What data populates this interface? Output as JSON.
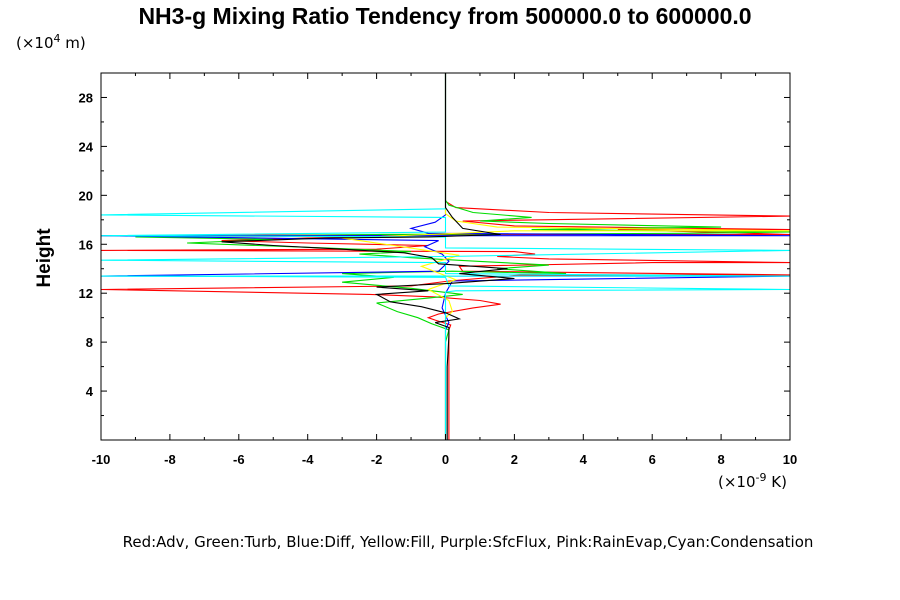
{
  "chart_data": {
    "type": "line",
    "title": "NH3-g Mixing Ratio Tendency from 500000.0 to 600000.0",
    "ylabel": "Height",
    "y_multiplier": {
      "prefix": "(×10",
      "exp": "4",
      "suffix": " m)"
    },
    "x_multiplier": {
      "prefix": "(×10",
      "exp": "-9",
      "suffix": " K)"
    },
    "xlim": [
      -10,
      10
    ],
    "ylim": [
      0,
      30
    ],
    "x_ticks": [
      -10,
      -8,
      -6,
      -4,
      -2,
      0,
      2,
      4,
      6,
      8,
      10
    ],
    "y_ticks": [
      4,
      8,
      12,
      16,
      20,
      24,
      28
    ],
    "grid": false,
    "caption": "Red:Adv, Green:Turb, Blue:Diff, Yellow:Fill, Purple:SfcFlux, Pink:RainEvap,Cyan:Condensation",
    "series": [
      {
        "name": "Adv",
        "color": "#ff0000",
        "points": [
          [
            0.1,
            0
          ],
          [
            0.1,
            2
          ],
          [
            0.1,
            4
          ],
          [
            0.1,
            6
          ],
          [
            0.1,
            8
          ],
          [
            0.1,
            9
          ],
          [
            0.15,
            9.4
          ],
          [
            -0.3,
            9.8
          ],
          [
            -0.5,
            10
          ],
          [
            -0.2,
            10.3
          ],
          [
            0.8,
            10.8
          ],
          [
            1.6,
            11.1
          ],
          [
            1.0,
            11.4
          ],
          [
            -0.3,
            11.7
          ],
          [
            -2.2,
            11.9
          ],
          [
            -10,
            12.3
          ],
          [
            -1.0,
            12.6
          ],
          [
            0.1,
            13
          ],
          [
            2.2,
            13.5
          ],
          [
            10,
            13.5
          ],
          [
            0.5,
            13.8
          ],
          [
            0.4,
            14.2
          ],
          [
            6.0,
            14.5
          ],
          [
            10,
            14.5
          ],
          [
            3.0,
            14.8
          ],
          [
            1.5,
            15.0
          ],
          [
            2.6,
            15.2
          ],
          [
            2.0,
            15.4
          ],
          [
            -10,
            15.5
          ],
          [
            -2.0,
            15.6
          ],
          [
            -0.5,
            15.9
          ],
          [
            -4.0,
            16.1
          ],
          [
            -6.5,
            16.3
          ],
          [
            -4.0,
            16.5
          ],
          [
            -1.0,
            16.6
          ],
          [
            -10,
            16.7
          ],
          [
            0.5,
            16.8
          ],
          [
            10,
            16.8
          ],
          [
            5.0,
            17.2
          ],
          [
            10,
            17.2
          ],
          [
            2.0,
            17.5
          ],
          [
            0.5,
            17.9
          ],
          [
            10,
            18.3
          ],
          [
            3.0,
            18.6
          ],
          [
            0.3,
            19.0
          ],
          [
            0.0,
            19.5
          ],
          [
            0.0,
            30
          ]
        ]
      },
      {
        "name": "Turb",
        "color": "#00dd00",
        "points": [
          [
            0.0,
            0
          ],
          [
            0.0,
            8
          ],
          [
            0.1,
            9
          ],
          [
            -0.4,
            9.5
          ],
          [
            -0.8,
            10.0
          ],
          [
            -1.4,
            10.5
          ],
          [
            -2.0,
            11.2
          ],
          [
            -0.5,
            11.6
          ],
          [
            0.5,
            11.9
          ],
          [
            -1.0,
            12.4
          ],
          [
            -3.0,
            12.9
          ],
          [
            -1.5,
            13.3
          ],
          [
            -3.0,
            13.6
          ],
          [
            0.2,
            13.8
          ],
          [
            3.5,
            13.6
          ],
          [
            1.5,
            14.0
          ],
          [
            3.0,
            14.3
          ],
          [
            1.0,
            14.6
          ],
          [
            -1.0,
            14.9
          ],
          [
            -2.5,
            15.2
          ],
          [
            -1.0,
            15.4
          ],
          [
            -3.5,
            15.7
          ],
          [
            -7.5,
            16.1
          ],
          [
            -5.0,
            16.4
          ],
          [
            -9.0,
            16.6
          ],
          [
            -2.0,
            16.8
          ],
          [
            7.0,
            16.9
          ],
          [
            10,
            17.0
          ],
          [
            2.5,
            17.2
          ],
          [
            8.0,
            17.4
          ],
          [
            3.0,
            17.7
          ],
          [
            1.0,
            17.9
          ],
          [
            2.5,
            18.2
          ],
          [
            0.8,
            18.6
          ],
          [
            0.1,
            19.2
          ],
          [
            0.0,
            19.6
          ],
          [
            0.0,
            30
          ]
        ]
      },
      {
        "name": "Diff",
        "color": "#0000ff",
        "points": [
          [
            0.0,
            0
          ],
          [
            0.0,
            9
          ],
          [
            0.1,
            9.6
          ],
          [
            0.0,
            10.2
          ],
          [
            -0.1,
            10.8
          ],
          [
            0.0,
            12.0
          ],
          [
            0.2,
            13.0
          ],
          [
            10,
            13.4
          ],
          [
            -10,
            13.4
          ],
          [
            -0.2,
            13.8
          ],
          [
            0.1,
            14.6
          ],
          [
            -0.1,
            15.2
          ],
          [
            -0.6,
            15.8
          ],
          [
            -0.2,
            16.3
          ],
          [
            -10,
            16.7
          ],
          [
            10,
            16.7
          ],
          [
            -0.5,
            16.9
          ],
          [
            -1.0,
            17.3
          ],
          [
            -0.3,
            17.8
          ],
          [
            0.0,
            18.4
          ],
          [
            0.0,
            30
          ]
        ]
      },
      {
        "name": "Fill",
        "color": "#ffff00",
        "points": [
          [
            0.0,
            0
          ],
          [
            0.0,
            10
          ],
          [
            0.2,
            10.5
          ],
          [
            0.1,
            11.4
          ],
          [
            -0.5,
            12.3
          ],
          [
            0.3,
            13.1
          ],
          [
            -0.7,
            14.2
          ],
          [
            0.4,
            15.1
          ],
          [
            -1.5,
            15.9
          ],
          [
            -3.0,
            16.5
          ],
          [
            -0.5,
            16.8
          ],
          [
            2.0,
            17.1
          ],
          [
            10,
            17.1
          ],
          [
            1.5,
            17.4
          ],
          [
            0.3,
            17.9
          ],
          [
            0.0,
            18.5
          ],
          [
            0.0,
            30
          ]
        ]
      },
      {
        "name": "Condensation",
        "color": "#00ffff",
        "points": [
          [
            0.0,
            0
          ],
          [
            0.0,
            12.1
          ],
          [
            0.3,
            12.2
          ],
          [
            10,
            12.3
          ],
          [
            0.1,
            12.6
          ],
          [
            0.0,
            13.3
          ],
          [
            -10,
            13.4
          ],
          [
            10,
            13.4
          ],
          [
            0.0,
            13.6
          ],
          [
            0.0,
            14.5
          ],
          [
            -10,
            14.7
          ],
          [
            0.0,
            15.0
          ],
          [
            10,
            15.5
          ],
          [
            0.0,
            15.7
          ],
          [
            0.0,
            16.6
          ],
          [
            -10,
            16.7
          ],
          [
            0.0,
            17.0
          ],
          [
            0.0,
            18.2
          ],
          [
            -10,
            18.4
          ],
          [
            0.0,
            18.9
          ],
          [
            0.0,
            30
          ]
        ]
      },
      {
        "name": "",
        "color": "#000000",
        "points": [
          [
            0.05,
            0
          ],
          [
            0.05,
            6
          ],
          [
            0.1,
            8.5
          ],
          [
            0.1,
            9.2
          ],
          [
            -0.3,
            9.6
          ],
          [
            0.4,
            9.9
          ],
          [
            0.0,
            10.4
          ],
          [
            -0.7,
            10.9
          ],
          [
            -1.6,
            11.3
          ],
          [
            -2.0,
            11.9
          ],
          [
            -0.5,
            12.2
          ],
          [
            -2.0,
            12.5
          ],
          [
            0.1,
            12.8
          ],
          [
            2.0,
            13.2
          ],
          [
            0.4,
            13.6
          ],
          [
            1.8,
            14.0
          ],
          [
            -0.2,
            14.4
          ],
          [
            -0.4,
            14.9
          ],
          [
            -1.2,
            15.3
          ],
          [
            -3.0,
            15.6
          ],
          [
            -5.0,
            15.9
          ],
          [
            -6.5,
            16.2
          ],
          [
            -3.5,
            16.5
          ],
          [
            -0.5,
            16.6
          ],
          [
            1.6,
            16.8
          ],
          [
            0.5,
            17.3
          ],
          [
            0.2,
            18.2
          ],
          [
            0.0,
            19.0
          ],
          [
            0.0,
            30
          ]
        ]
      }
    ]
  }
}
